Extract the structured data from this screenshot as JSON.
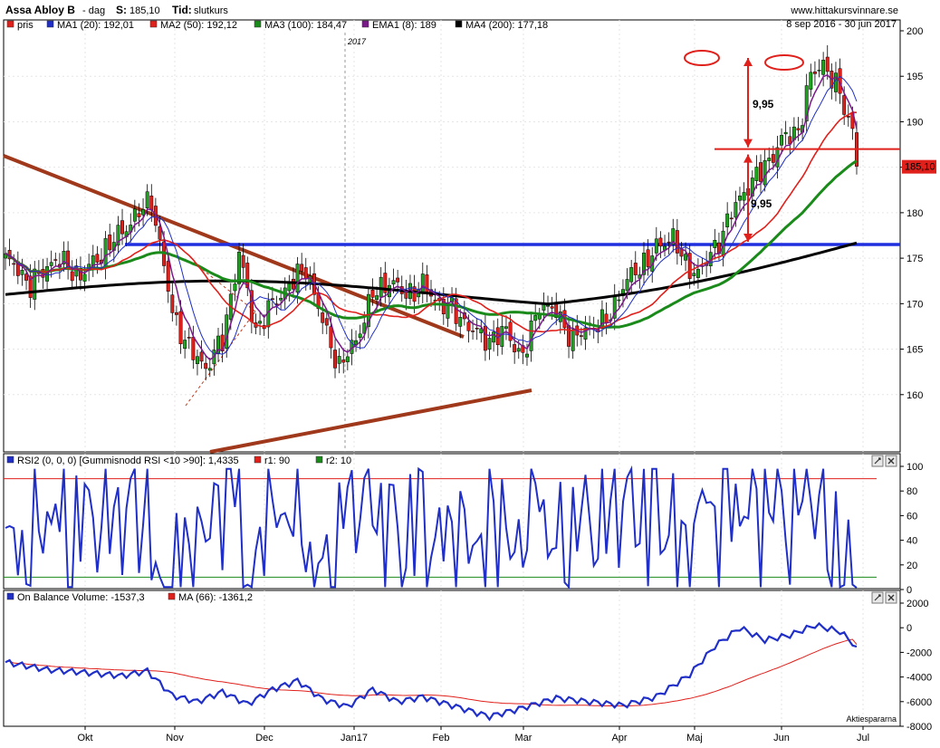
{
  "header": {
    "stock": "Assa Abloy B",
    "interval": "- dag",
    "last_label": "S:",
    "last_value": "185,10",
    "mode_label": "Tid:",
    "mode_value": "slutkurs",
    "site": "www.hittakursvinnare.se",
    "date_range": "8 sep 2016 - 30 jun 2017"
  },
  "year_label": "2017",
  "price_tag": "185,10",
  "price_legend": [
    {
      "label": "pris",
      "color": "#e0201b"
    },
    {
      "label": "MA1 (20): 192,01",
      "color": "#1f2fc8"
    },
    {
      "label": "MA2 (50): 192,12",
      "color": "#e0201b"
    },
    {
      "label": "MA3 (100): 184,47",
      "color": "#1a8a1a"
    },
    {
      "label": "EMA1 (8): 189",
      "color": "#7a1a8a"
    },
    {
      "label": "MA4 (200): 177,18",
      "color": "#000000"
    }
  ],
  "annotations": {
    "upper_move": "9,95",
    "lower_move": "9,95"
  },
  "rsi_legend": [
    {
      "label": "RSI2 (0, 0, 0) [Gummisnodd RSI <10 >90]: 1,4335",
      "color": "#1f2fc8"
    },
    {
      "label": "r1: 90",
      "color": "#e0201b"
    },
    {
      "label": "r2: 10",
      "color": "#1a8a1a"
    }
  ],
  "obv_legend": [
    {
      "label": "On Balance Volume: -1537,3",
      "color": "#1f2fc8"
    },
    {
      "label": "MA (66): -1361,2",
      "color": "#e0201b"
    }
  ],
  "watermark": "Aktiespararna",
  "chart_data": [
    {
      "type": "candlestick",
      "title": "Assa Abloy B - dag",
      "x_ticks": [
        "Okt",
        "Nov",
        "Dec",
        "Jan17",
        "Feb",
        "Mar",
        "Apr",
        "Maj",
        "Jun",
        "Jul"
      ],
      "ylim": [
        155,
        200
      ],
      "y_ticks": [
        160,
        165,
        170,
        175,
        180,
        185,
        190,
        195,
        200
      ],
      "last_close": 185.1,
      "series": [
        {
          "name": "MA1 (20)",
          "last": 192.01
        },
        {
          "name": "MA2 (50)",
          "last": 192.12
        },
        {
          "name": "MA3 (100)",
          "last": 184.47
        },
        {
          "name": "EMA1 (8)",
          "last": 189
        },
        {
          "name": "MA4 (200)",
          "last": 177.18
        }
      ],
      "key_points": {
        "start": 175.5,
        "oct_high": 181.5,
        "nov_low": 162,
        "dec_low": 162,
        "jan_high": 171,
        "feb_low": 161,
        "feb_end": 172,
        "mar_break": 180,
        "apr_high": 191,
        "may_high": 196.5,
        "may_low": 188,
        "jun_high": 196.5,
        "end": 185.1
      },
      "horizontal_levels": [
        176.5,
        187
      ],
      "measured_moves": [
        9.95,
        9.95
      ]
    },
    {
      "type": "line",
      "title": "RSI2 (0, 0, 0) [Gummisnodd RSI <10 >90]",
      "ylim": [
        0,
        100
      ],
      "y_ticks": [
        0,
        20,
        40,
        60,
        80,
        100
      ],
      "levels": {
        "r1": 90,
        "r2": 10
      },
      "last": 1.4335
    },
    {
      "type": "line",
      "title": "On Balance Volume",
      "ylim": [
        -8000,
        2000
      ],
      "y_ticks": [
        -8000,
        -6000,
        -4000,
        -2000,
        0,
        2000
      ],
      "series": [
        {
          "name": "On Balance Volume",
          "last": -1537.3
        },
        {
          "name": "MA (66)",
          "last": -1361.2
        }
      ],
      "key_points": {
        "start": -2800,
        "oct": -3800,
        "nov_low": -6000,
        "dec_high": -4300,
        "dec_low": -6500,
        "jan_end": -7200,
        "feb": -5500,
        "mar_low": -6300,
        "apr_high": 0,
        "may": -1000,
        "jun_high": 200,
        "end": -1537.3
      }
    }
  ]
}
